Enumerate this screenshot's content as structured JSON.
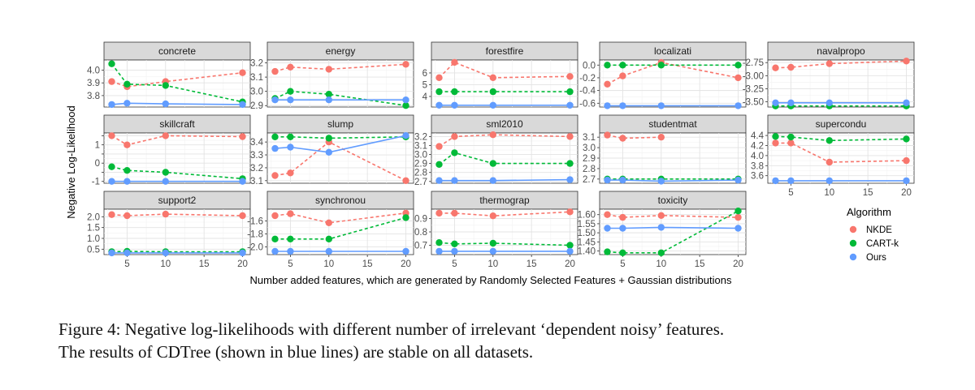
{
  "chart_data": {
    "type": "line",
    "title": "",
    "xlabel": "Number added features, which are generated by Randomly Selected Features + Gaussian distributions",
    "ylabel": "Negative Log-Likelihood",
    "x": [
      3,
      5,
      10,
      20
    ],
    "xlim": [
      2,
      21
    ],
    "xticks": [
      5,
      10,
      15,
      20
    ],
    "legend": {
      "title": "Algorithm",
      "position": "right",
      "items": [
        {
          "name": "NKDE",
          "color": "#f8766d"
        },
        {
          "name": "CART-k",
          "color": "#00ba38"
        },
        {
          "name": "Ours",
          "color": "#619cff"
        }
      ]
    },
    "panels": [
      {
        "name": "concrete",
        "ylim": [
          3.71,
          4.08
        ],
        "yticks": [
          3.8,
          3.9,
          4.0
        ],
        "ytick_labels": [
          "3.8",
          "3.9",
          "4.0"
        ],
        "series": [
          {
            "name": "NKDE",
            "values": [
              3.91,
              3.87,
              3.91,
              3.98
            ]
          },
          {
            "name": "CART-k",
            "values": [
              4.05,
              3.89,
              3.88,
              3.75
            ]
          },
          {
            "name": "Ours",
            "values": [
              3.73,
              3.74,
              3.735,
              3.73
            ]
          }
        ]
      },
      {
        "name": "energy",
        "ylim": [
          2.89,
          3.22
        ],
        "yticks": [
          2.9,
          3.0,
          3.1,
          3.2
        ],
        "ytick_labels": [
          "2.9",
          "3.0",
          "3.1",
          "3.2"
        ],
        "series": [
          {
            "name": "NKDE",
            "values": [
              3.14,
              3.17,
              3.155,
              3.19
            ]
          },
          {
            "name": "CART-k",
            "values": [
              2.95,
              3.0,
              2.98,
              2.9
            ]
          },
          {
            "name": "Ours",
            "values": [
              2.94,
              2.94,
              2.94,
              2.94
            ]
          }
        ]
      },
      {
        "name": "forestfire",
        "ylim": [
          3.1,
          7.1
        ],
        "yticks": [
          4,
          5,
          6
        ],
        "ytick_labels": [
          "4",
          "5",
          "6"
        ],
        "series": [
          {
            "name": "NKDE",
            "values": [
              5.6,
              6.9,
              5.6,
              5.7
            ]
          },
          {
            "name": "CART-k",
            "values": [
              4.4,
              4.4,
              4.4,
              4.4
            ]
          },
          {
            "name": "Ours",
            "values": [
              3.25,
              3.25,
              3.25,
              3.25
            ]
          }
        ]
      },
      {
        "name": "localizati",
        "ylim": [
          -0.66,
          0.08
        ],
        "yticks": [
          -0.6,
          -0.4,
          -0.2,
          0.0
        ],
        "ytick_labels": [
          "-0.6",
          "-0.4",
          "-0.2",
          "0.0"
        ],
        "series": [
          {
            "name": "NKDE",
            "values": [
              -0.3,
              -0.17,
              0.04,
              -0.2
            ]
          },
          {
            "name": "CART-k",
            "values": [
              0.0,
              0.0,
              0.0,
              0.0
            ]
          },
          {
            "name": "Ours",
            "values": [
              -0.64,
              -0.64,
              -0.64,
              -0.64
            ]
          }
        ]
      },
      {
        "name": "navalpropo",
        "ylim": [
          -3.6,
          -2.7
        ],
        "yticks": [
          -3.5,
          -3.25,
          -3.0,
          -2.75
        ],
        "ytick_labels": [
          "-3.50",
          "-3.25",
          "-3.00",
          "-2.75"
        ],
        "series": [
          {
            "name": "NKDE",
            "values": [
              -2.85,
              -2.84,
              -2.77,
              -2.72
            ]
          },
          {
            "name": "CART-k",
            "values": [
              -3.58,
              -3.58,
              -3.58,
              -3.58
            ]
          },
          {
            "name": "Ours",
            "values": [
              -3.52,
              -3.52,
              -3.52,
              -3.52
            ]
          }
        ]
      },
      {
        "name": "skillcraft",
        "ylim": [
          -1.1,
          1.65
        ],
        "yticks": [
          -1,
          -0.5,
          0,
          0.5,
          1,
          1.5
        ],
        "ytick_labels": [
          "-1",
          "",
          "0",
          "",
          "1",
          ""
        ],
        "series": [
          {
            "name": "NKDE",
            "values": [
              1.5,
              1.0,
              1.5,
              1.45
            ]
          },
          {
            "name": "CART-k",
            "values": [
              -0.2,
              -0.4,
              -0.5,
              -0.85
            ]
          },
          {
            "name": "Ours",
            "values": [
              -1.0,
              -1.0,
              -1.0,
              -1.0
            ]
          }
        ]
      },
      {
        "name": "slump",
        "ylim": [
          3.08,
          3.47
        ],
        "yticks": [
          3.1,
          3.2,
          3.3,
          3.4
        ],
        "ytick_labels": [
          "3.1",
          "3.2",
          "3.3",
          "3.4"
        ],
        "series": [
          {
            "name": "NKDE",
            "values": [
              3.14,
              3.16,
              3.4,
              3.1
            ]
          },
          {
            "name": "CART-k",
            "values": [
              3.44,
              3.44,
              3.43,
              3.44
            ]
          },
          {
            "name": "Ours",
            "values": [
              3.35,
              3.36,
              3.32,
              3.45
            ]
          }
        ]
      },
      {
        "name": "sml2010",
        "ylim": [
          2.68,
          3.24
        ],
        "yticks": [
          2.7,
          2.8,
          2.9,
          3.0,
          3.1,
          3.2
        ],
        "ytick_labels": [
          "2.7",
          "2.8",
          "2.9",
          "3.0",
          "3.1",
          "3.2"
        ],
        "series": [
          {
            "name": "NKDE",
            "values": [
              3.09,
              3.2,
              3.22,
              3.2
            ]
          },
          {
            "name": "CART-k",
            "values": [
              2.89,
              3.02,
              2.9,
              2.9
            ]
          },
          {
            "name": "Ours",
            "values": [
              2.71,
              2.71,
              2.71,
              2.72
            ]
          }
        ]
      },
      {
        "name": "studentmat",
        "ylim": [
          2.66,
          3.14
        ],
        "yticks": [
          2.7,
          2.8,
          2.9,
          3.0,
          3.1
        ],
        "ytick_labels": [
          "2.7",
          "2.8",
          "2.9",
          "3.0",
          "3.1"
        ],
        "series": [
          {
            "name": "NKDE",
            "values": [
              3.12,
              3.09,
              3.1,
              null
            ]
          },
          {
            "name": "CART-k",
            "values": [
              2.7,
              2.7,
              2.7,
              2.7
            ]
          },
          {
            "name": "Ours",
            "values": [
              2.69,
              2.69,
              2.68,
              2.69
            ]
          }
        ]
      },
      {
        "name": "supercondu",
        "ylim": [
          3.45,
          4.45
        ],
        "yticks": [
          3.6,
          3.8,
          4.0,
          4.2,
          4.4
        ],
        "ytick_labels": [
          "3.6",
          "3.8",
          "4.0",
          "4.2",
          "4.4"
        ],
        "series": [
          {
            "name": "NKDE",
            "values": [
              4.25,
              4.25,
              3.87,
              3.9
            ]
          },
          {
            "name": "CART-k",
            "values": [
              4.38,
              4.37,
              4.3,
              4.33
            ]
          },
          {
            "name": "Ours",
            "values": [
              3.5,
              3.5,
              3.5,
              3.5
            ]
          }
        ]
      },
      {
        "name": "support2",
        "ylim": [
          0.25,
          2.35
        ],
        "yticks": [
          0.5,
          1.0,
          1.5,
          2.0
        ],
        "ytick_labels": [
          "0.5",
          "1.0",
          "1.5",
          "2.0"
        ],
        "series": [
          {
            "name": "NKDE",
            "values": [
              2.1,
              2.05,
              2.12,
              2.05
            ]
          },
          {
            "name": "CART-k",
            "values": [
              0.38,
              0.4,
              0.38,
              0.38
            ]
          },
          {
            "name": "Ours",
            "values": [
              0.33,
              0.33,
              0.33,
              0.33
            ]
          }
        ]
      },
      {
        "name": "synchronou",
        "ylim": [
          -2.12,
          -1.42
        ],
        "yticks": [
          -2.0,
          -1.8,
          -1.6
        ],
        "ytick_labels": [
          "-2.0",
          "-1.8",
          "-1.6"
        ],
        "series": [
          {
            "name": "NKDE",
            "values": [
              -1.52,
              -1.49,
              -1.63,
              -1.48
            ]
          },
          {
            "name": "CART-k",
            "values": [
              -1.88,
              -1.88,
              -1.88,
              -1.55
            ]
          },
          {
            "name": "Ours",
            "values": [
              -2.07,
              -2.07,
              -2.07,
              -2.07
            ]
          }
        ]
      },
      {
        "name": "thermograp",
        "ylim": [
          0.63,
          0.97
        ],
        "yticks": [
          0.7,
          0.8,
          0.9
        ],
        "ytick_labels": [
          "0.7",
          "0.8",
          "0.9"
        ],
        "series": [
          {
            "name": "NKDE",
            "values": [
              0.94,
              0.94,
              0.92,
              0.95
            ]
          },
          {
            "name": "CART-k",
            "values": [
              0.72,
              0.71,
              0.715,
              0.7
            ]
          },
          {
            "name": "Ours",
            "values": [
              0.655,
              0.655,
              0.655,
              0.655
            ]
          }
        ]
      },
      {
        "name": "toxicity",
        "ylim": [
          1.38,
          1.63
        ],
        "yticks": [
          1.4,
          1.45,
          1.5,
          1.55,
          1.6
        ],
        "ytick_labels": [
          "1.40",
          "1.45",
          "1.50",
          "1.55",
          "1.60"
        ],
        "series": [
          {
            "name": "NKDE",
            "values": [
              1.6,
              1.585,
              1.595,
              1.585
            ]
          },
          {
            "name": "CART-k",
            "values": [
              1.395,
              1.39,
              1.39,
              1.62
            ]
          },
          {
            "name": "Ours",
            "values": [
              1.525,
              1.525,
              1.53,
              1.525
            ]
          }
        ]
      }
    ]
  },
  "caption": {
    "line1": "Figure 4: Negative log-likelihoods with different number of irrelevant ‘dependent noisy’ features.",
    "line2": "The results of CDTree (shown in blue lines) are stable on all datasets."
  }
}
